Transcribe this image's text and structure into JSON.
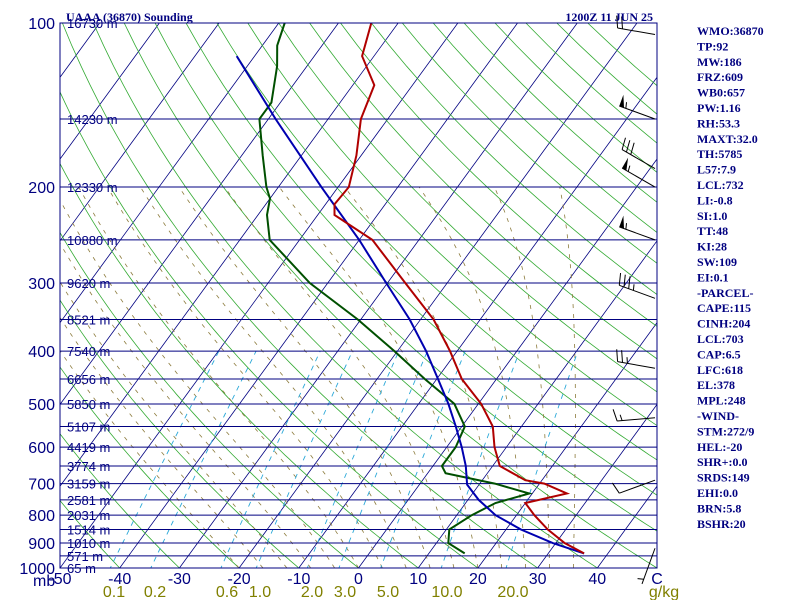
{
  "header": {
    "left": "UAAA (36870) Sounding",
    "right": "1200Z 11 JUN 25"
  },
  "chart_data": {
    "type": "line",
    "diagram": "skew-T log-P",
    "title": "UAAA (36870) Sounding",
    "subtitle": "1200Z 11 JUN 25",
    "pressure_range_hPa": [
      1000,
      100
    ],
    "temperature_range_C": [
      -50,
      50
    ],
    "pressure_ticks": [
      100,
      200,
      300,
      400,
      500,
      600,
      700,
      800,
      900,
      1000
    ],
    "pressure_unit": "mb",
    "temperature_ticks": [
      "-50",
      "-40",
      "-30",
      "-20",
      "-10",
      "0",
      "10",
      "20",
      "30",
      "40",
      "C"
    ],
    "temperature_tick_values": [
      -50,
      -40,
      -30,
      -20,
      -10,
      0,
      10,
      20,
      30,
      40,
      50
    ],
    "mixing_ratio_ticks": [
      "0.1",
      "0.2",
      "0.6",
      "1.0",
      "2.0",
      "3.0",
      "5.0",
      "10.0",
      "20.0",
      "g/kg"
    ],
    "mixing_ratio_values": [
      0.1,
      0.2,
      0.6,
      1.0,
      2.0,
      3.0,
      5.0,
      10.0,
      20.0
    ],
    "height_labels": [
      {
        "p": 100,
        "label": "16730 m"
      },
      {
        "p": 150,
        "label": "14230 m"
      },
      {
        "p": 200,
        "label": "12330 m"
      },
      {
        "p": 250,
        "label": "10880 m"
      },
      {
        "p": 300,
        "label": "9620 m"
      },
      {
        "p": 350,
        "label": "8521 m"
      },
      {
        "p": 400,
        "label": "7540 m"
      },
      {
        "p": 450,
        "label": "6656 m"
      },
      {
        "p": 500,
        "label": "5850 m"
      },
      {
        "p": 550,
        "label": "5107 m"
      },
      {
        "p": 600,
        "label": "4419 m"
      },
      {
        "p": 650,
        "label": "3774 m"
      },
      {
        "p": 700,
        "label": "3159 m"
      },
      {
        "p": 750,
        "label": "2581 m"
      },
      {
        "p": 800,
        "label": "2031 m"
      },
      {
        "p": 850,
        "label": "1514 m"
      },
      {
        "p": 900,
        "label": "1010 m"
      },
      {
        "p": 950,
        "label": "571 m"
      },
      {
        "p": 1000,
        "label": "65 m"
      }
    ],
    "series": [
      {
        "name": "Temperature",
        "color": "#b00000",
        "points": [
          {
            "p": 940,
            "t": 36.0
          },
          {
            "p": 900,
            "t": 31.5
          },
          {
            "p": 850,
            "t": 27.0
          },
          {
            "p": 800,
            "t": 23.0
          },
          {
            "p": 760,
            "t": 20.0
          },
          {
            "p": 730,
            "t": 25.8
          },
          {
            "p": 700,
            "t": 20.8
          },
          {
            "p": 690,
            "t": 17.2
          },
          {
            "p": 650,
            "t": 11.2
          },
          {
            "p": 600,
            "t": 8.0
          },
          {
            "p": 550,
            "t": 5.2
          },
          {
            "p": 500,
            "t": 0.5
          },
          {
            "p": 450,
            "t": -5.8
          },
          {
            "p": 400,
            "t": -11.2
          },
          {
            "p": 350,
            "t": -17.8
          },
          {
            "p": 300,
            "t": -27.0
          },
          {
            "p": 250,
            "t": -37.8
          },
          {
            "p": 225,
            "t": -47.2
          },
          {
            "p": 215,
            "t": -48.5
          },
          {
            "p": 200,
            "t": -48.2
          },
          {
            "p": 175,
            "t": -50.8
          },
          {
            "p": 150,
            "t": -54.5
          },
          {
            "p": 130,
            "t": -56.4
          },
          {
            "p": 115,
            "t": -62.0
          },
          {
            "p": 100,
            "t": -64.5
          }
        ]
      },
      {
        "name": "Dewpoint",
        "color": "#005000",
        "points": [
          {
            "p": 940,
            "t": 16.0
          },
          {
            "p": 900,
            "t": 12.0
          },
          {
            "p": 850,
            "t": 10.5
          },
          {
            "p": 800,
            "t": 12.5
          },
          {
            "p": 760,
            "t": 15.0
          },
          {
            "p": 730,
            "t": 19.5
          },
          {
            "p": 700,
            "t": 12.5
          },
          {
            "p": 670,
            "t": 3.0
          },
          {
            "p": 650,
            "t": 1.5
          },
          {
            "p": 600,
            "t": 1.5
          },
          {
            "p": 550,
            "t": 0.5
          },
          {
            "p": 500,
            "t": -4.0
          },
          {
            "p": 450,
            "t": -12.0
          },
          {
            "p": 400,
            "t": -20.5
          },
          {
            "p": 350,
            "t": -30.5
          },
          {
            "p": 300,
            "t": -43.0
          },
          {
            "p": 250,
            "t": -55.0
          },
          {
            "p": 225,
            "t": -58.5
          },
          {
            "p": 210,
            "t": -60.0
          },
          {
            "p": 200,
            "t": -62.0
          },
          {
            "p": 175,
            "t": -66.5
          },
          {
            "p": 150,
            "t": -71.5
          },
          {
            "p": 140,
            "t": -71.5
          },
          {
            "p": 120,
            "t": -75.0
          },
          {
            "p": 110,
            "t": -77.5
          },
          {
            "p": 100,
            "t": -79.0
          }
        ]
      },
      {
        "name": "Parcel",
        "color": "#0000b0",
        "points": [
          {
            "p": 940,
            "t": 36.0
          },
          {
            "p": 900,
            "t": 29.5
          },
          {
            "p": 850,
            "t": 22.5
          },
          {
            "p": 800,
            "t": 16.5
          },
          {
            "p": 750,
            "t": 11.8
          },
          {
            "p": 703,
            "t": 8.0
          },
          {
            "p": 650,
            "t": 5.5
          },
          {
            "p": 600,
            "t": 2.5
          },
          {
            "p": 550,
            "t": -1.0
          },
          {
            "p": 500,
            "t": -5.0
          },
          {
            "p": 450,
            "t": -9.8
          },
          {
            "p": 400,
            "t": -15.2
          },
          {
            "p": 350,
            "t": -21.8
          },
          {
            "p": 300,
            "t": -30.2
          },
          {
            "p": 250,
            "t": -40.0
          },
          {
            "p": 200,
            "t": -52.8
          },
          {
            "p": 150,
            "t": -68.8
          },
          {
            "p": 115,
            "t": -83.0
          }
        ]
      }
    ],
    "wind_barbs": [
      {
        "p": 105,
        "dir": 280,
        "kt": 20
      },
      {
        "p": 150,
        "dir": 290,
        "kt": 55
      },
      {
        "p": 185,
        "dir": 300,
        "kt": 30
      },
      {
        "p": 200,
        "dir": 300,
        "kt": 55
      },
      {
        "p": 250,
        "dir": 290,
        "kt": 55
      },
      {
        "p": 320,
        "dir": 290,
        "kt": 35
      },
      {
        "p": 430,
        "dir": 280,
        "kt": 25
      },
      {
        "p": 530,
        "dir": 265,
        "kt": 15
      },
      {
        "p": 690,
        "dir": 250,
        "kt": 10
      },
      {
        "p": 920,
        "dir": 200,
        "kt": 5
      }
    ],
    "colors": {
      "isobar": "#000080",
      "isotherm": "#000080",
      "dry_adiabat": "#33aa33",
      "moist_adiabat": "#8c7b3c",
      "mixing_ratio": "#2aa8d8",
      "temperature": "#b00000",
      "dewpoint": "#005000",
      "parcel": "#0000b0",
      "wind_barb": "#000000"
    }
  },
  "indices": [
    "WMO:36870",
    "TP:92",
    "MW:186",
    "FRZ:609",
    "WB0:657",
    "PW:1.16",
    "RH:53.3",
    "MAXT:32.0",
    "TH:5785",
    "L57:7.9",
    "LCL:732",
    "LI:-0.8",
    "SI:1.0",
    "TT:48",
    "KI:28",
    "SW:109",
    "EI:0.1",
    "-PARCEL-",
    "CAPE:115",
    "CINH:204",
    "LCL:703",
    "CAP:6.5",
    "LFC:618",
    "EL:378",
    "MPL:248",
    "-WIND-",
    "STM:272/9",
    "HEL:-20",
    "SHR+:0.0",
    "SRDS:149",
    "EHI:0.0",
    "BRN:5.8",
    "BSHR:20"
  ]
}
